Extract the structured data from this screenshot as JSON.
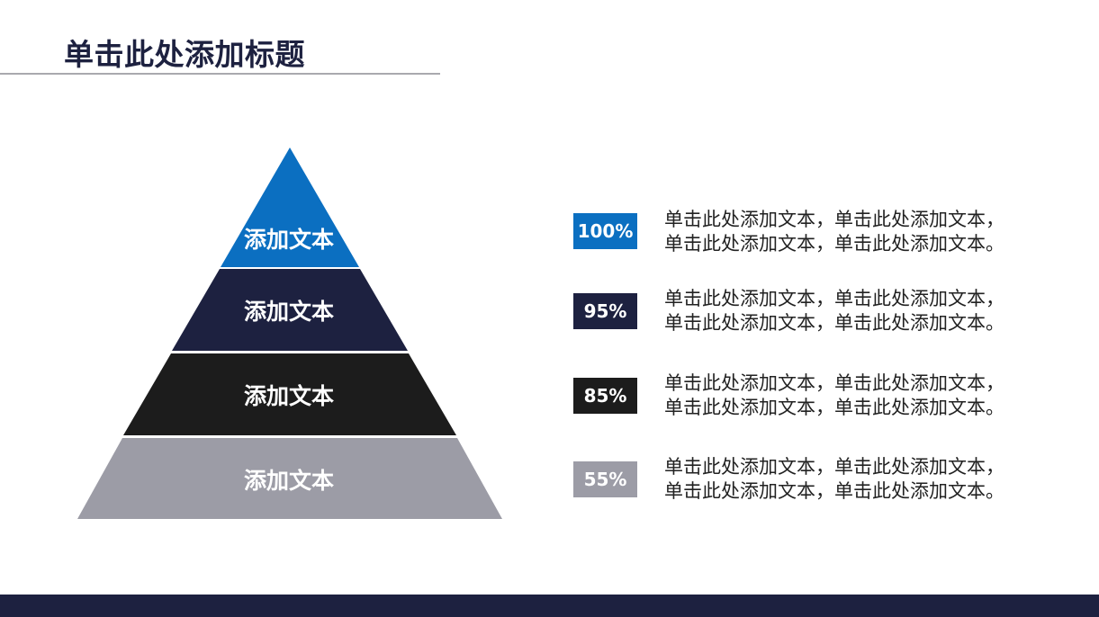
{
  "title": "单击此处添加标题",
  "colors": {
    "blue": "#0b6fc1",
    "navy": "#1d2140",
    "black": "#1c1c1c",
    "gray": "#9c9ca6",
    "footer": "#1d2140"
  },
  "pyramid": {
    "levels": [
      {
        "label": "添加文本",
        "color": "#0b6fc1"
      },
      {
        "label": "添加文本",
        "color": "#1d2140"
      },
      {
        "label": "添加文本",
        "color": "#1c1c1c"
      },
      {
        "label": "添加文本",
        "color": "#9c9ca6"
      }
    ]
  },
  "items": [
    {
      "badge": "100%",
      "color": "#0b6fc1",
      "line1": "单击此处添加文本，单击此处添加文本，",
      "line2": "单击此处添加文本，单击此处添加文本。"
    },
    {
      "badge": "95%",
      "color": "#1d2140",
      "line1": "单击此处添加文本，单击此处添加文本，",
      "line2": "单击此处添加文本，单击此处添加文本。"
    },
    {
      "badge": "85%",
      "color": "#1c1c1c",
      "line1": "单击此处添加文本，单击此处添加文本，",
      "line2": "单击此处添加文本，单击此处添加文本。"
    },
    {
      "badge": "55%",
      "color": "#9c9ca6",
      "line1": "单击此处添加文本，单击此处添加文本，",
      "line2": "单击此处添加文本，单击此处添加文本。"
    }
  ]
}
